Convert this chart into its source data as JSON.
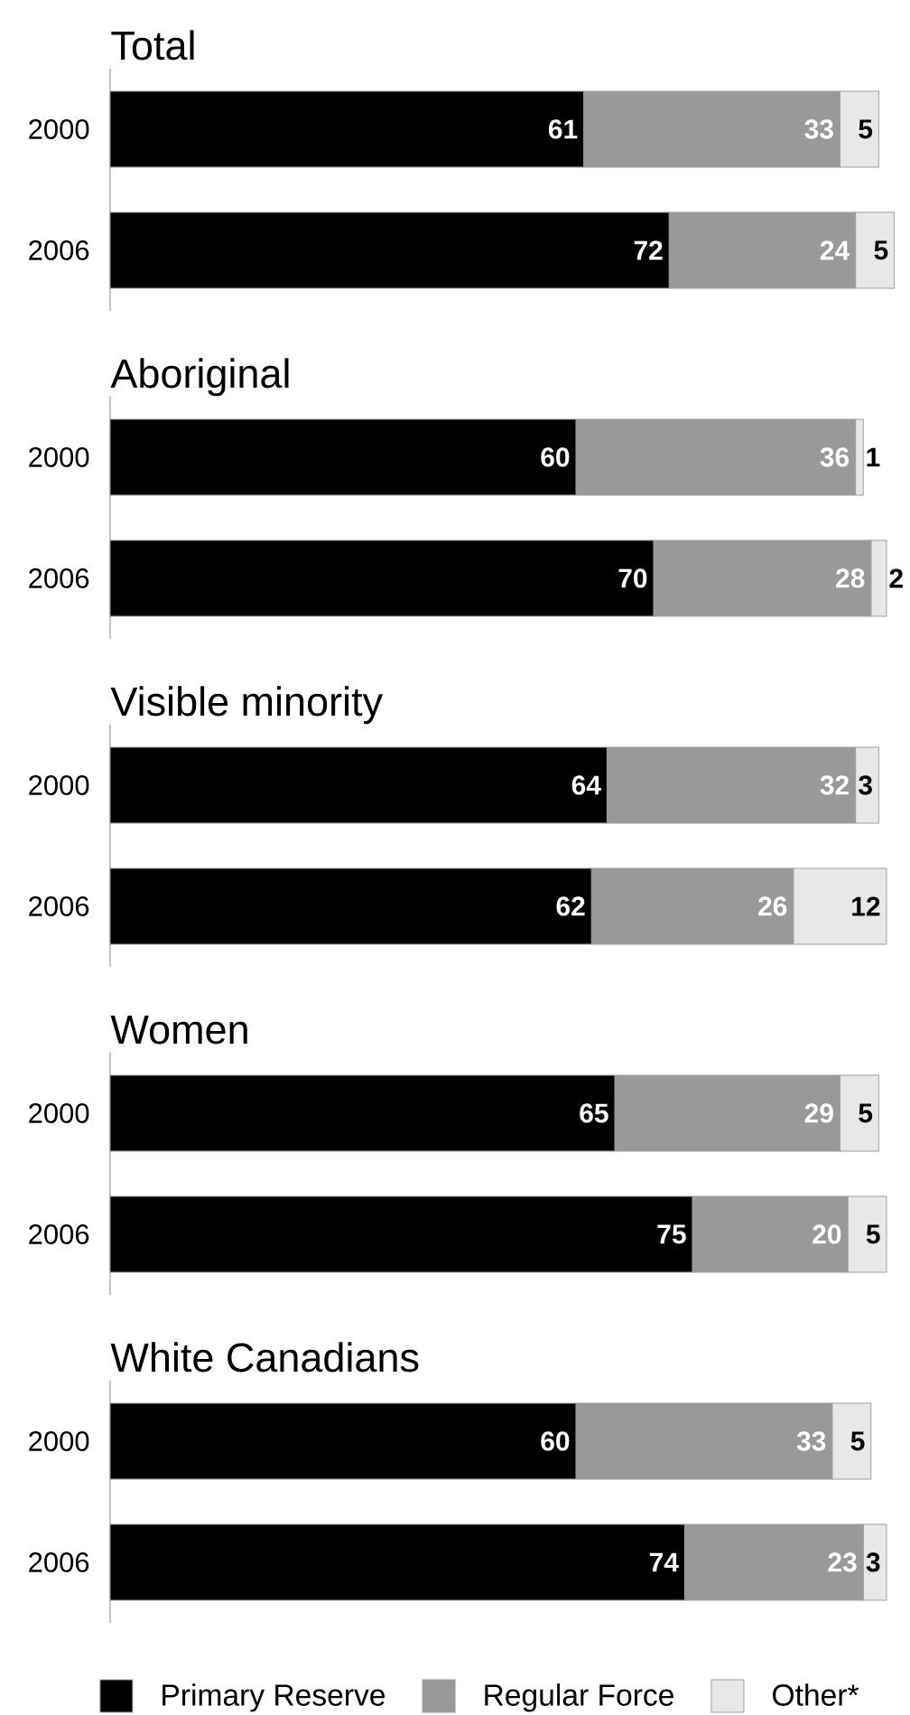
{
  "chart_data": [
    {
      "type": "bar",
      "orientation": "horizontal",
      "stacked": true,
      "data_labels": true,
      "title": "Total",
      "categories": [
        "2000",
        "2006"
      ],
      "series": [
        {
          "color": "#000000",
          "values": [
            61,
            72
          ]
        },
        {
          "color": "#999999",
          "values": [
            33,
            24
          ]
        },
        {
          "color": "#e8e8e8",
          "values": [
            5,
            5
          ]
        }
      ]
    },
    {
      "type": "bar",
      "orientation": "horizontal",
      "stacked": true,
      "data_labels": true,
      "title": "Aboriginal",
      "categories": [
        "2000",
        "2006"
      ],
      "series": [
        {
          "color": "#000000",
          "values": [
            60,
            70
          ]
        },
        {
          "color": "#999999",
          "values": [
            36,
            28
          ]
        },
        {
          "color": "#e8e8e8",
          "values": [
            1,
            2
          ]
        }
      ]
    },
    {
      "type": "bar",
      "orientation": "horizontal",
      "stacked": true,
      "data_labels": true,
      "title": "Visible minority",
      "categories": [
        "2000",
        "2006"
      ],
      "series": [
        {
          "color": "#000000",
          "values": [
            64,
            62
          ]
        },
        {
          "color": "#999999",
          "values": [
            32,
            26
          ]
        },
        {
          "color": "#e8e8e8",
          "values": [
            3,
            12
          ]
        }
      ]
    },
    {
      "type": "bar",
      "orientation": "horizontal",
      "stacked": true,
      "data_labels": true,
      "title": "Women",
      "categories": [
        "2000",
        "2006"
      ],
      "series": [
        {
          "color": "#000000",
          "values": [
            65,
            75
          ]
        },
        {
          "color": "#999999",
          "values": [
            29,
            20
          ]
        },
        {
          "color": "#e8e8e8",
          "values": [
            5,
            5
          ]
        }
      ]
    },
    {
      "type": "bar",
      "orientation": "horizontal",
      "stacked": true,
      "data_labels": true,
      "title": "White Canadians",
      "categories": [
        "2000",
        "2006"
      ],
      "legend": "bottom",
      "series": [
        {
          "name": "Primary Reserve",
          "color": "#000000",
          "values": [
            60,
            74
          ]
        },
        {
          "name": "Regular Force",
          "color": "#999999",
          "values": [
            33,
            23
          ]
        },
        {
          "name": "Other*",
          "color": "#e8e8e8",
          "values": [
            5,
            3
          ]
        }
      ]
    }
  ]
}
